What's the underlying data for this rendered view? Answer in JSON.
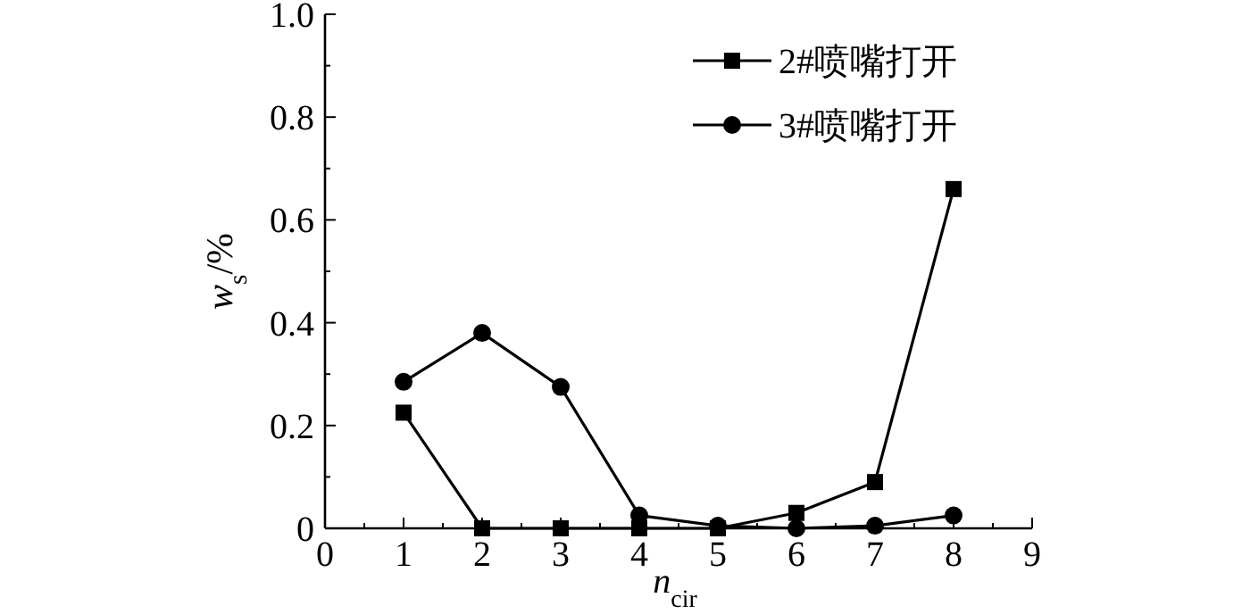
{
  "chart_data": {
    "type": "line",
    "xlabel": "n$_{cir}$",
    "ylabel": "w$_{s}$/%",
    "x": [
      1,
      2,
      3,
      4,
      5,
      6,
      7,
      8
    ],
    "series": [
      {
        "name": "2#喷嘴打开",
        "color": "#000000",
        "marker": "square",
        "values": [
          0.225,
          0,
          0,
          0,
          0,
          0.03,
          0.09,
          0.66
        ]
      },
      {
        "name": "3#喷嘴打开",
        "color": "#000000",
        "marker": "circle",
        "values": [
          0.285,
          0.38,
          0.275,
          0.025,
          0.005,
          0,
          0.005,
          0.025
        ]
      }
    ],
    "xlim": [
      0,
      9
    ],
    "xticks": [
      0,
      1,
      2,
      3,
      4,
      5,
      6,
      7,
      8,
      9
    ],
    "ylim": [
      0,
      1.0
    ],
    "yticks": [
      0,
      {
        "value": 0.2,
        "label": "0.2"
      },
      {
        "value": 0.4,
        "label": "0.4"
      },
      {
        "value": 0.6,
        "label": "0.6"
      },
      {
        "value": 0.8,
        "label": "0.8"
      },
      {
        "value": 1.0,
        "label": "1.0"
      }
    ],
    "grid": false,
    "legend": "top right",
    "line_style": "solid"
  }
}
